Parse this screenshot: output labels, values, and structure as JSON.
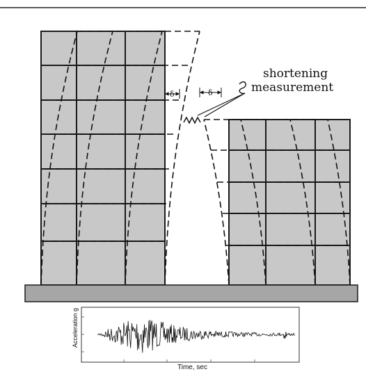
{
  "annotation": {
    "line1": "shortening",
    "line2": "measurement"
  },
  "dimension_labels": {
    "left_gap": "δ",
    "right_gap": "δ"
  },
  "accelerogram": {
    "ylabel": "Acceleration g",
    "xlabel": "Time, sec"
  },
  "colors": {
    "building_fill": "#c8c8c8",
    "ground_fill": "#a6a6a6",
    "frame_line": "#1a1a1a"
  }
}
